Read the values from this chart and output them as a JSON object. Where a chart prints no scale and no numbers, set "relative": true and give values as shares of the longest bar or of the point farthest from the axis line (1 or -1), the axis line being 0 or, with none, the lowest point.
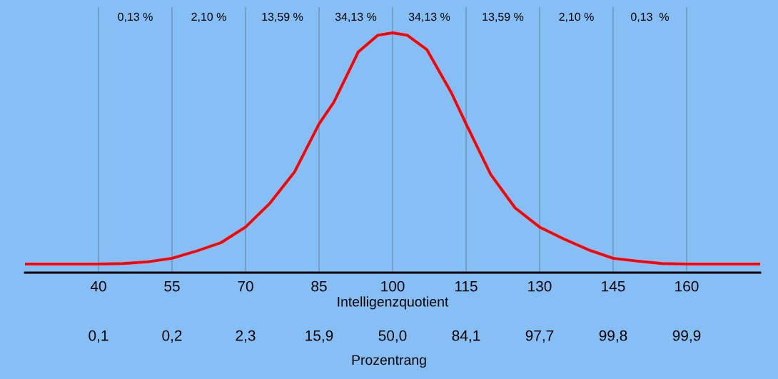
{
  "chart_data": {
    "type": "line",
    "relative": true,
    "x": [
      25,
      40,
      45,
      50,
      55,
      60,
      65,
      70,
      75,
      80,
      85,
      88,
      93,
      97,
      100,
      103,
      107,
      112,
      115,
      120,
      125,
      130,
      135,
      140,
      145,
      150,
      155,
      160,
      175
    ],
    "series": [
      {
        "color": "#ff0000",
        "values": [
          0.036,
          0.036,
          0.038,
          0.045,
          0.06,
          0.09,
          0.125,
          0.19,
          0.29,
          0.42,
          0.62,
          0.71,
          0.92,
          0.99,
          1,
          0.99,
          0.93,
          0.75,
          0.62,
          0.41,
          0.27,
          0.19,
          0.14,
          0.095,
          0.06,
          0.048,
          0.038,
          0.036,
          0.036
        ]
      }
    ],
    "xlim": [
      25,
      175
    ],
    "xticks": [
      40,
      55,
      70,
      85,
      100,
      115,
      130,
      145,
      160
    ],
    "xlabel": "Intelligenzquotient",
    "annotations": [
      "0,13 %",
      "2,10 %",
      "13,59 %",
      "34,13 %",
      "34,13 %",
      "13,59 %",
      "2,10 %",
      "0,13  %",
      "0,1",
      "0,2",
      "2,3",
      "15,9",
      "50,0",
      "84,1",
      "97,7",
      "99,8",
      "99,9",
      "Prozentrang"
    ],
    "grid": "x",
    "marker": "none",
    "line_style": "solid"
  }
}
